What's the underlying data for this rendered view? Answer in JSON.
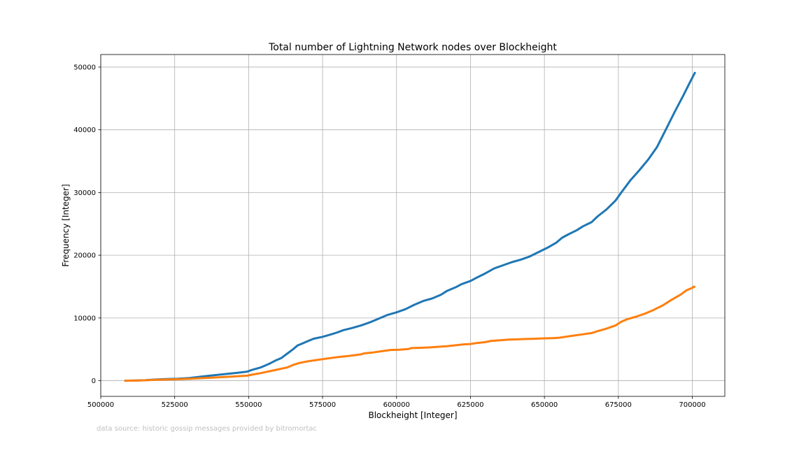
{
  "chart_data": {
    "type": "line",
    "title": "Total number of Lightning Network nodes over Blockheight",
    "xlabel": "Blockheight [Integer]",
    "ylabel": "Frequency [Integer]",
    "xlim": [
      500000,
      711000
    ],
    "ylim": [
      -2500,
      52000
    ],
    "x_ticks": [
      500000,
      525000,
      550000,
      575000,
      600000,
      625000,
      650000,
      675000,
      700000
    ],
    "y_ticks": [
      0,
      10000,
      20000,
      30000,
      40000,
      50000
    ],
    "grid": true,
    "legend": "none",
    "series": [
      {
        "color": "#1f77b4",
        "x": [
          508000,
          512000,
          515000,
          518000,
          522000,
          526000,
          530000,
          534000,
          538000,
          542000,
          546000,
          549500,
          551000,
          554000,
          557000,
          559000,
          561000,
          563000,
          565000,
          566500,
          568000,
          570000,
          572000,
          575000,
          578000,
          580000,
          582000,
          585000,
          588000,
          591000,
          594000,
          597000,
          600000,
          603000,
          606000,
          609000,
          612000,
          615000,
          617000,
          620000,
          622000,
          625000,
          627000,
          630000,
          633000,
          636000,
          639000,
          642000,
          645000,
          648000,
          651000,
          654000,
          656000,
          658000,
          661000,
          663000,
          666000,
          668000,
          671000,
          674000,
          676000,
          679000,
          682000,
          685000,
          688000,
          691000,
          694000,
          697000,
          699000,
          701000
        ],
        "y": [
          0,
          30,
          80,
          180,
          260,
          320,
          420,
          650,
          850,
          1050,
          1250,
          1450,
          1700,
          2100,
          2700,
          3200,
          3600,
          4300,
          5000,
          5600,
          5900,
          6300,
          6700,
          7000,
          7400,
          7700,
          8050,
          8400,
          8800,
          9300,
          9900,
          10500,
          10900,
          11400,
          12100,
          12700,
          13100,
          13700,
          14300,
          14900,
          15400,
          15900,
          16400,
          17100,
          17900,
          18400,
          18900,
          19300,
          19800,
          20500,
          21200,
          22000,
          22800,
          23300,
          24000,
          24600,
          25300,
          26200,
          27300,
          28700,
          30000,
          31900,
          33500,
          35200,
          37200,
          40000,
          42800,
          45500,
          47400,
          49200
        ]
      },
      {
        "color": "#ff7f0e",
        "x": [
          508000,
          512000,
          515000,
          518000,
          522000,
          526000,
          530000,
          534000,
          538000,
          542000,
          546000,
          549500,
          551000,
          554000,
          557000,
          560000,
          563000,
          565000,
          567000,
          570000,
          573000,
          576000,
          580000,
          584000,
          588000,
          589000,
          592000,
          595000,
          598000,
          601000,
          604000,
          605000,
          608000,
          611000,
          614000,
          617000,
          620000,
          623000,
          625000,
          627000,
          630000,
          632000,
          635000,
          638000,
          641000,
          644000,
          647000,
          650000,
          653000,
          655000,
          657000,
          660000,
          663000,
          666000,
          668000,
          671000,
          674000,
          676000,
          678000,
          681000,
          684000,
          687000,
          690000,
          693000,
          696000,
          698000,
          700000,
          700500,
          701000
        ],
        "y": [
          0,
          20,
          60,
          130,
          190,
          240,
          300,
          400,
          500,
          600,
          700,
          800,
          950,
          1200,
          1500,
          1800,
          2100,
          2500,
          2800,
          3100,
          3300,
          3500,
          3750,
          3950,
          4200,
          4350,
          4500,
          4700,
          4900,
          4950,
          5050,
          5200,
          5250,
          5300,
          5400,
          5500,
          5650,
          5800,
          5850,
          6000,
          6150,
          6350,
          6450,
          6550,
          6600,
          6650,
          6700,
          6750,
          6800,
          6850,
          7000,
          7200,
          7400,
          7600,
          7900,
          8300,
          8800,
          9400,
          9800,
          10200,
          10700,
          11300,
          12000,
          12900,
          13700,
          14400,
          14800,
          15000,
          14900
        ]
      }
    ]
  },
  "footnote": "data source: historic gossip messages provided by bitromortac"
}
